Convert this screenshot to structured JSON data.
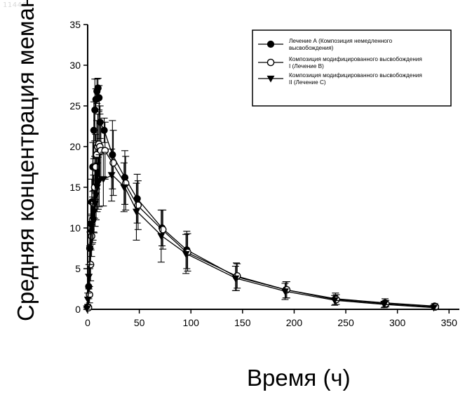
{
  "page_id": "11446",
  "chart_data": {
    "type": "line",
    "xlabel": "Время (ч)",
    "ylabel": "Средняя концентрация мемантина в плазме (нг/мл)",
    "xlim": [
      0,
      360
    ],
    "ylim": [
      0,
      35
    ],
    "x_ticks": [
      0,
      50,
      100,
      150,
      200,
      250,
      300,
      350
    ],
    "y_ticks": [
      0,
      5,
      10,
      15,
      20,
      25,
      30,
      35
    ],
    "x_tick_labels": [
      "0",
      "50",
      "100",
      "150",
      "200",
      "250",
      "300",
      "350"
    ],
    "y_tick_labels": [
      "0",
      "5",
      "10",
      "15",
      "20",
      "25",
      "30",
      "35"
    ],
    "grid": false,
    "legend_position": "top-right",
    "series": [
      {
        "name": "Лечение А (Композиция немедленного высвобождения)",
        "marker": "filled-circle",
        "color": "#000000",
        "x": [
          0,
          1,
          2,
          3,
          4,
          5,
          6,
          7,
          8,
          9,
          10,
          11,
          12,
          16,
          24,
          36,
          48,
          72,
          96,
          144,
          192,
          240,
          288,
          336
        ],
        "y": [
          0.3,
          2.8,
          7.5,
          10.5,
          13.2,
          17.5,
          22.0,
          24.5,
          25.8,
          26.8,
          27.2,
          26.0,
          23.0,
          22.0,
          19.0,
          16.2,
          13.6,
          10.0,
          7.3,
          4.0,
          2.4,
          1.3,
          0.8,
          0.4
        ],
        "err": [
          0.3,
          1.5,
          2.5,
          2.5,
          2.8,
          3.0,
          3.5,
          3.8,
          1.3,
          1.5,
          1.2,
          1.5,
          2.0,
          1.5,
          4.2,
          3.3,
          3.0,
          2.2,
          2.3,
          1.7,
          1.0,
          0.7,
          0.5,
          0.3
        ]
      },
      {
        "name": "Композиция модифицированного высвобождения I (Лечение В)",
        "marker": "open-circle",
        "color": "#000000",
        "x": [
          0,
          1,
          2,
          3,
          4,
          5,
          6,
          7,
          8,
          9,
          10,
          11,
          12,
          16,
          24,
          36,
          48,
          72,
          96,
          144,
          192,
          240,
          288,
          336
        ],
        "y": [
          0.2,
          1.8,
          5.5,
          9.0,
          11.0,
          13.0,
          15.0,
          17.5,
          19.0,
          20.0,
          20.3,
          20.0,
          19.5,
          19.5,
          18.0,
          15.5,
          12.8,
          9.8,
          7.0,
          4.1,
          2.4,
          1.2,
          0.7,
          0.3
        ],
        "err": [
          0.2,
          1.0,
          2.0,
          2.5,
          2.8,
          3.5,
          3.8,
          4.0,
          4.2,
          4.0,
          4.0,
          4.0,
          3.5,
          3.5,
          4.0,
          3.3,
          3.0,
          2.4,
          2.3,
          1.5,
          1.0,
          0.6,
          0.4,
          0.2
        ]
      },
      {
        "name": "Композиция модифицированного высвобождения II (Лечение С)",
        "marker": "filled-triangle-down",
        "color": "#000000",
        "x": [
          0,
          1,
          2,
          3,
          4,
          5,
          6,
          7,
          8,
          9,
          10,
          11,
          12,
          16,
          24,
          36,
          48,
          72,
          96,
          144,
          192,
          240,
          288,
          336
        ],
        "y": [
          0.1,
          1.2,
          4.0,
          7.5,
          9.5,
          10.5,
          11.0,
          12.0,
          13.0,
          14.0,
          15.0,
          15.5,
          15.8,
          16.0,
          16.5,
          15.0,
          12.0,
          9.0,
          6.8,
          3.8,
          2.2,
          1.1,
          0.6,
          0.2
        ],
        "err": [
          0.1,
          0.8,
          1.5,
          2.0,
          2.2,
          2.5,
          2.5,
          2.6,
          2.8,
          3.0,
          3.0,
          3.2,
          3.2,
          3.3,
          3.2,
          3.0,
          3.5,
          3.2,
          2.4,
          1.5,
          1.0,
          0.6,
          0.4,
          0.2
        ]
      }
    ]
  }
}
